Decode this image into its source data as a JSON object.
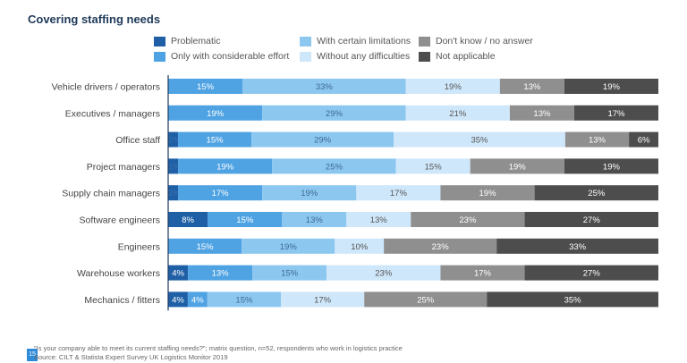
{
  "page": {
    "title": "Covering staffing needs",
    "footnote": "\"Is your company able to meet its current staffing needs?\"; matrix question, n=52, respondents who work in logistics practice",
    "source": "Source: CILT & Statista Expert Survey UK Logistics Monitor 2019",
    "page_number": "15"
  },
  "chart_data": {
    "type": "bar",
    "orientation": "horizontal",
    "stacked": true,
    "percent": true,
    "title": "Covering staffing needs",
    "xlim": [
      0,
      100
    ],
    "categories": [
      "Vehicle drivers / operators",
      "Executives / managers",
      "Office staff",
      "Project managers",
      "Supply chain managers",
      "Software engineers",
      "Engineers",
      "Warehouse workers",
      "Mechanics / fitters"
    ],
    "series": [
      {
        "name": "Problematic",
        "color": "#1f5fa6",
        "values": [
          0,
          0,
          2,
          2,
          2,
          8,
          0,
          4,
          4
        ]
      },
      {
        "name": "Only with considerable effort",
        "color": "#4fa3e3",
        "values": [
          15,
          19,
          15,
          19,
          17,
          15,
          15,
          13,
          4
        ]
      },
      {
        "name": "With certain limitations",
        "color": "#8cc7f0",
        "values": [
          33,
          29,
          29,
          25,
          19,
          13,
          19,
          15,
          15
        ]
      },
      {
        "name": "Without any difficulties",
        "color": "#cfe7fa",
        "values": [
          19,
          21,
          35,
          15,
          17,
          13,
          10,
          23,
          17
        ]
      },
      {
        "name": "Don't know / no answer",
        "color": "#8f8f8f",
        "values": [
          13,
          13,
          13,
          19,
          19,
          23,
          23,
          17,
          25
        ]
      },
      {
        "name": "Not applicable",
        "color": "#4d4d4d",
        "values": [
          19,
          17,
          6,
          19,
          25,
          27,
          33,
          27,
          35
        ]
      }
    ],
    "legend_position": "top",
    "grid": false
  }
}
